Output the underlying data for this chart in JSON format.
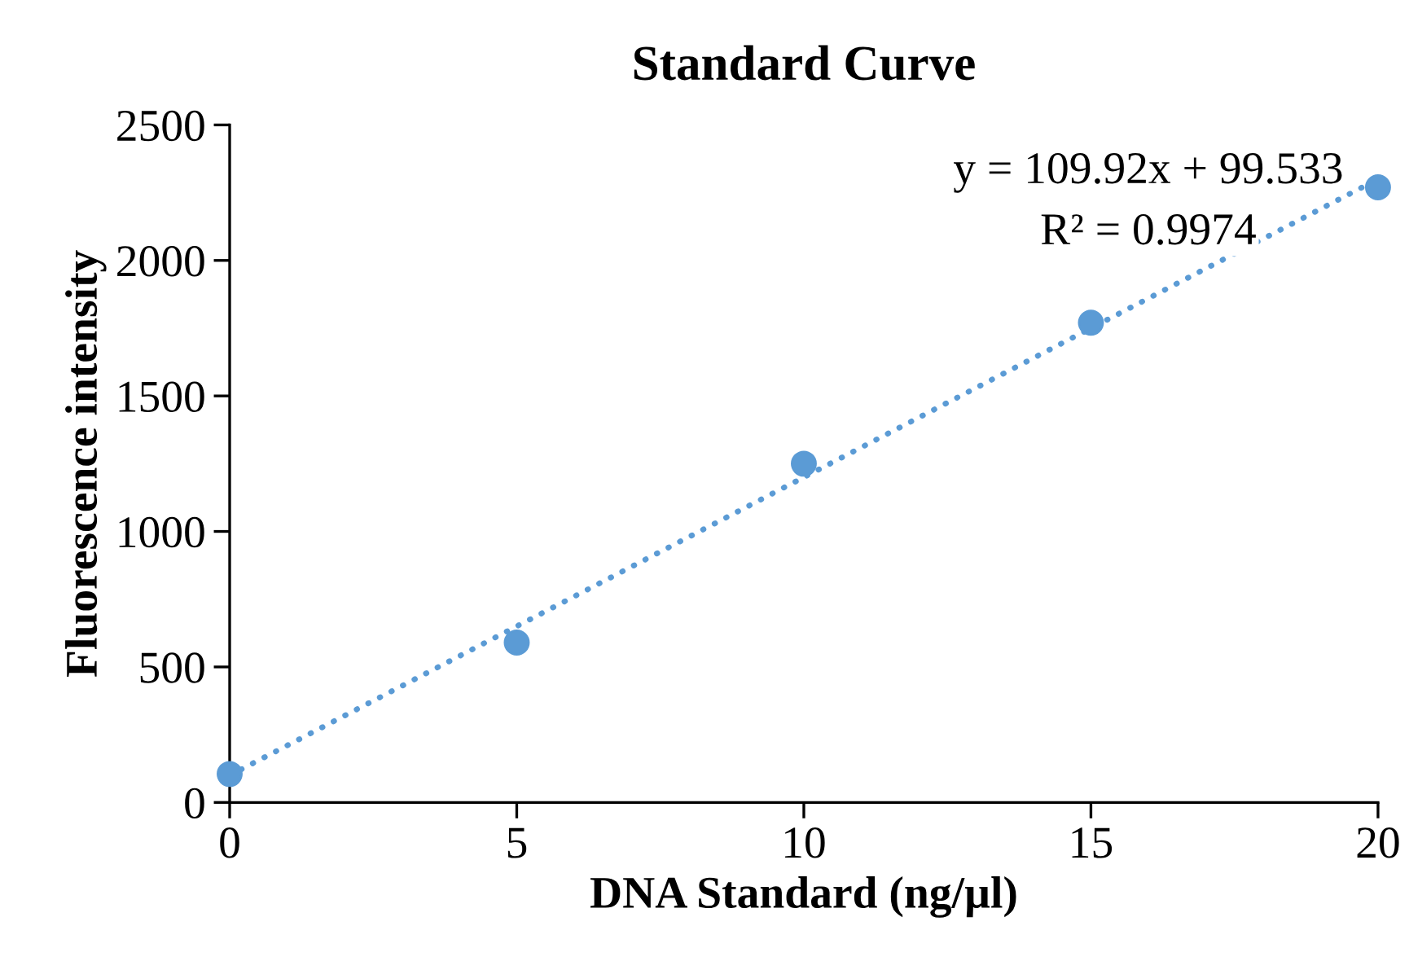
{
  "chart_data": {
    "type": "scatter",
    "title": "Standard Curve",
    "xlabel": "DNA Standard (ng/µl)",
    "ylabel": "Fluorescence intensity",
    "x": [
      0,
      5,
      10,
      15,
      20
    ],
    "series": [
      {
        "color": "#5b9bd5",
        "values": [
          105,
          590,
          1250,
          1770,
          2270
        ],
        "marker": "circle"
      },
      {
        "type": "line",
        "color": "#5b9bd5",
        "x": [
          0,
          20
        ],
        "values": [
          100,
          2300
        ],
        "line_style": "dotted",
        "marker": "none"
      }
    ],
    "annotations": [
      "y = 109.92x + 99.533",
      "R² = 0.9974"
    ],
    "xlim": [
      0,
      20
    ],
    "xticks": [
      0,
      5,
      10,
      15,
      20
    ],
    "ylim": [
      0,
      2500
    ],
    "yticks": [
      0,
      500,
      1000,
      1500,
      2000,
      2500
    ],
    "grid": false,
    "legend": false
  }
}
